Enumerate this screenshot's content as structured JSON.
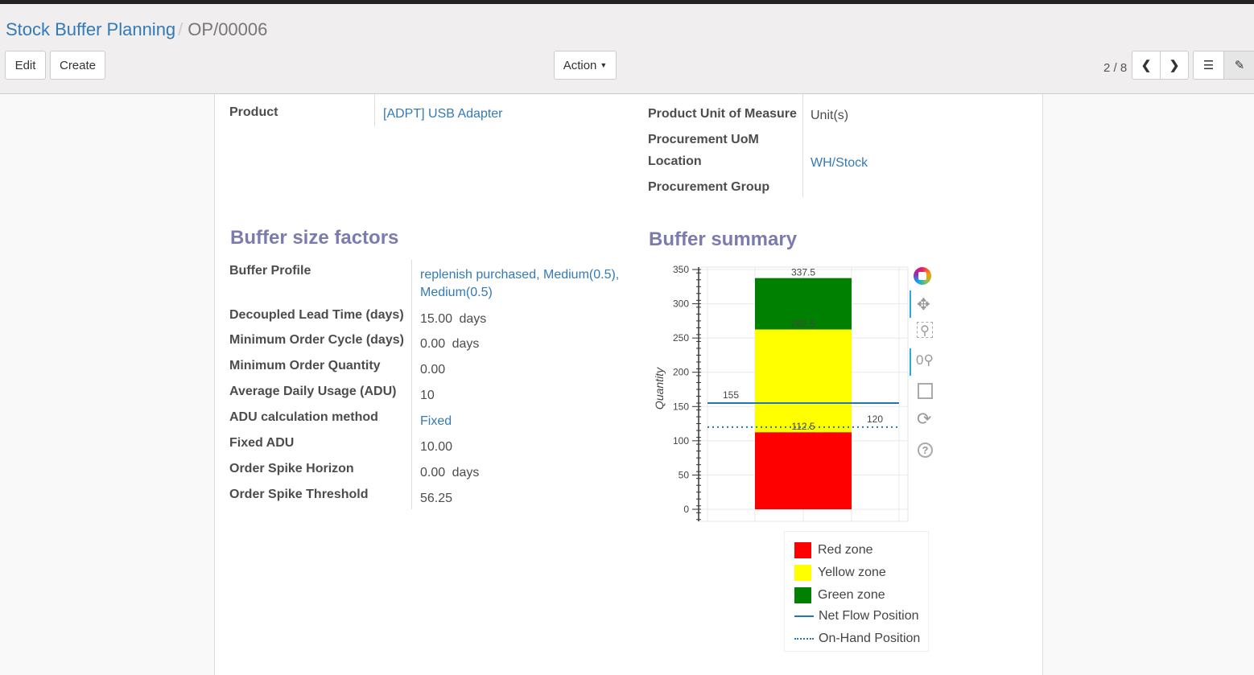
{
  "breadcrumb": {
    "parent": "Stock Buffer Planning",
    "current": "OP/00006"
  },
  "toolbar": {
    "edit": "Edit",
    "create": "Create",
    "action": "Action",
    "pager": "2 / 8"
  },
  "fields_top": {
    "product_label": "Product",
    "product_value": "[ADPT] USB Adapter",
    "uom_label": "Product Unit of Measure",
    "uom_value": "Unit(s)",
    "proc_uom_label": "Procurement UoM",
    "location_label": "Location",
    "location_value": "WH/Stock",
    "proc_group_label": "Procurement Group"
  },
  "factors": {
    "title": "Buffer size factors",
    "rows": [
      {
        "label": "Buffer Profile",
        "value": "replenish purchased, Medium(0.5),",
        "value2": "Medium(0.5)"
      },
      {
        "label": "Decoupled Lead Time (days)",
        "value": "15.00",
        "unit": "days"
      },
      {
        "label": "Minimum Order Cycle (days)",
        "value": "0.00",
        "unit": "days"
      },
      {
        "label": "Minimum Order Quantity",
        "value": "0.00"
      },
      {
        "label": "Average Daily Usage (ADU)",
        "value": "10"
      },
      {
        "label": "ADU calculation method",
        "value": "Fixed"
      },
      {
        "label": "Fixed ADU",
        "value": "10.00"
      },
      {
        "label": "Order Spike Horizon",
        "value": "0.00",
        "unit": "days"
      },
      {
        "label": "Order Spike Threshold",
        "value": "56.25"
      }
    ]
  },
  "summary": {
    "title": "Buffer summary"
  },
  "chart_data": {
    "type": "bar",
    "ylabel": "Quantity",
    "ylim": [
      0,
      350
    ],
    "yticks": [
      0,
      50,
      100,
      150,
      200,
      250,
      300,
      350
    ],
    "grid": true,
    "stacked_zones": [
      {
        "name": "Red zone",
        "from": 0,
        "to": 112.5,
        "color": "#ff0000"
      },
      {
        "name": "Yellow zone",
        "from": 112.5,
        "to": 262.5,
        "color": "#ffff00"
      },
      {
        "name": "Green zone",
        "from": 262.5,
        "to": 337.5,
        "color": "#008000"
      }
    ],
    "zone_labels": [
      "112.5",
      "262.5",
      "337.5"
    ],
    "lines": [
      {
        "name": "Net Flow Position",
        "value": 155,
        "label": "155",
        "style": "solid",
        "color": "#1f77b4"
      },
      {
        "name": "On-Hand Position",
        "value": 120,
        "label": "120",
        "style": "dotted",
        "color": "#1f77b4"
      }
    ],
    "legend": "bottom"
  },
  "tools": [
    "bokeh-logo-icon",
    "pan-icon",
    "box-zoom-icon",
    "wheel-zoom-icon",
    "save-icon",
    "reset-icon",
    "help-icon"
  ]
}
